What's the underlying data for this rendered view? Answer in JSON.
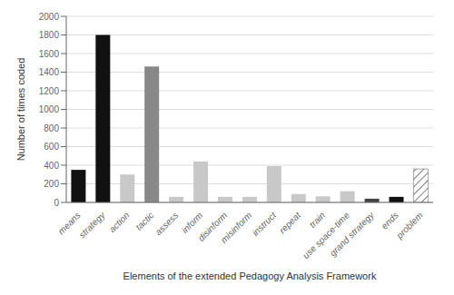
{
  "chart_data": {
    "type": "bar",
    "xlabel": "Elements of the extended Pedagogy Analysis Framework",
    "ylabel": "Number of times coded",
    "categories": [
      "means",
      "strategy",
      "action",
      "tactic",
      "assess",
      "inform",
      "disinform",
      "misinform",
      "instruct",
      "repeat",
      "train",
      "use space-time",
      "grand strategy",
      "ends",
      "problem"
    ],
    "values": [
      350,
      1800,
      300,
      1460,
      60,
      440,
      60,
      60,
      390,
      90,
      65,
      120,
      40,
      60,
      360
    ],
    "colors": [
      "#111111",
      "#111111",
      "#c8c8c8",
      "#888888",
      "#c8c8c8",
      "#c8c8c8",
      "#c8c8c8",
      "#c8c8c8",
      "#c8c8c8",
      "#c8c8c8",
      "#c8c8c8",
      "#c8c8c8",
      "#444444",
      "#111111",
      "hatch"
    ],
    "ylim": [
      0,
      2000
    ],
    "yticks": [
      0,
      200,
      400,
      600,
      800,
      1000,
      1200,
      1400,
      1600,
      1800,
      2000
    ],
    "grid": true
  }
}
